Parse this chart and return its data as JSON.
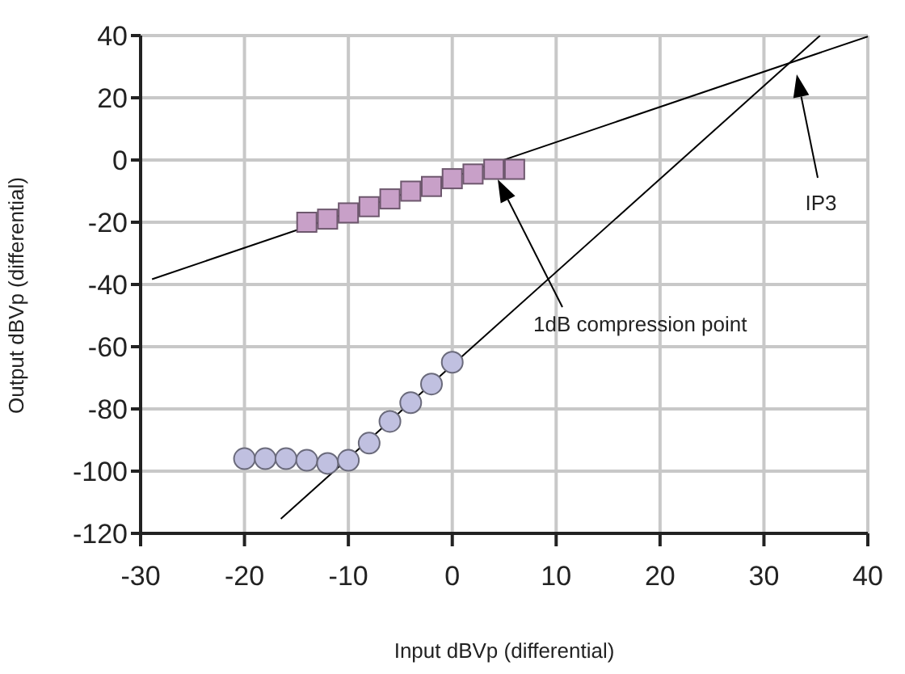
{
  "chart_data": {
    "type": "scatter",
    "xlabel": "Input dBVp (differential)",
    "ylabel": "Output dBVp (differential)",
    "xlim": [
      -30,
      40
    ],
    "xticks": [
      -30,
      -20,
      -10,
      0,
      10,
      20,
      30,
      40
    ],
    "ylim": [
      -120,
      40
    ],
    "yticks": [
      -120,
      -100,
      -80,
      -60,
      -40,
      -20,
      0,
      20,
      40
    ],
    "grid": true,
    "series": [
      {
        "type": "line",
        "color": "#000000",
        "marker": "none",
        "x": [
          -28.9,
          40
        ],
        "values": [
          -38.3,
          39.7
        ]
      },
      {
        "type": "line",
        "color": "#000000",
        "marker": "none",
        "x": [
          -16.5,
          35.4
        ],
        "values": [
          -115.3,
          40
        ]
      },
      {
        "color": "#c8a0c8",
        "marker": "square",
        "x": [
          -14,
          -12,
          -10,
          -8,
          -6,
          -4,
          -2,
          0,
          2,
          4,
          6
        ],
        "values": [
          -20,
          -19,
          -17,
          -15,
          -12.5,
          -10,
          -8.5,
          -6,
          -4.5,
          -3,
          -3
        ]
      },
      {
        "color": "#c0c0e0",
        "marker": "circle",
        "x": [
          -20,
          -18,
          -16,
          -14,
          -12,
          -10,
          -8,
          -6,
          -4,
          -2,
          0
        ],
        "values": [
          -96,
          -96,
          -96,
          -96.5,
          -97.5,
          -96.5,
          -91,
          -84,
          -78,
          -72,
          -65
        ]
      }
    ],
    "annotations": [
      "1dB compression point",
      "IP3"
    ]
  }
}
